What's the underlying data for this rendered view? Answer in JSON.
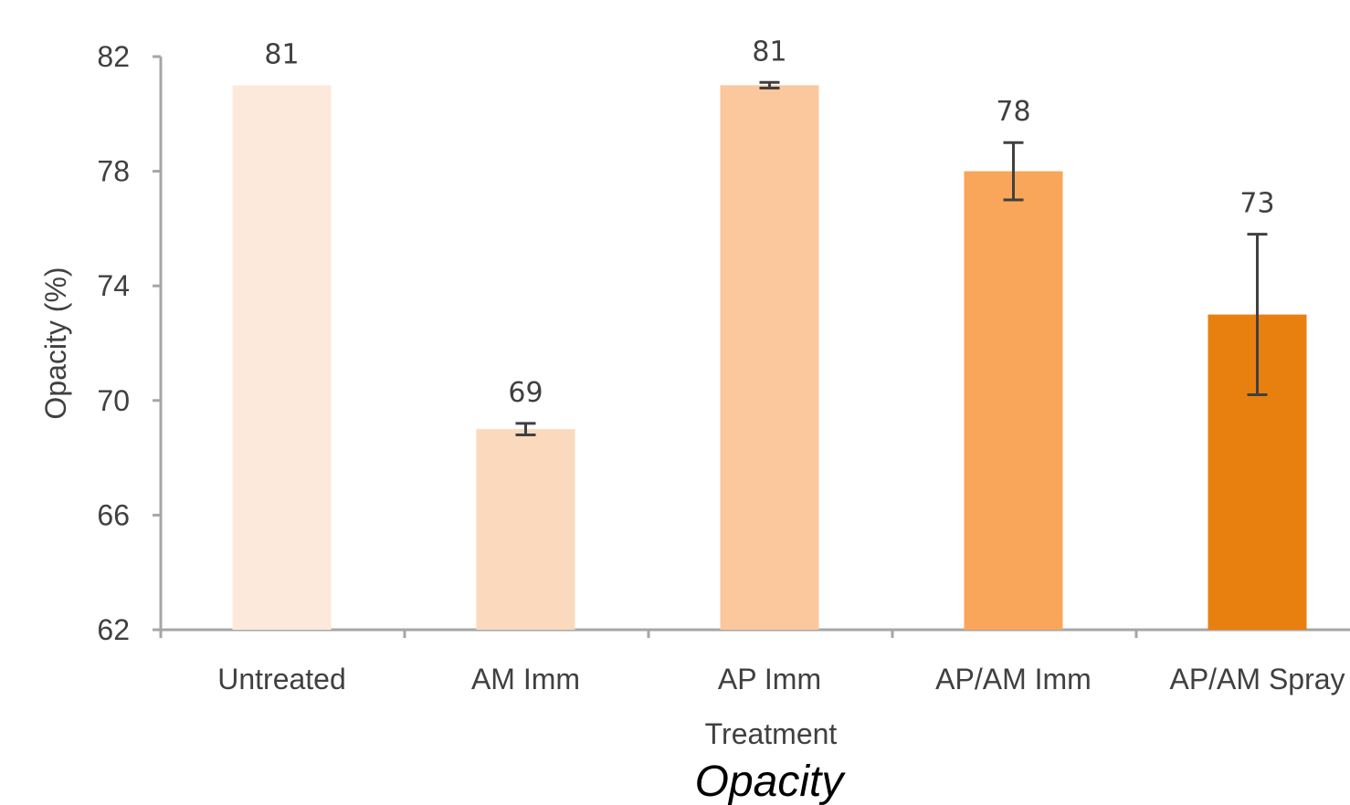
{
  "chart_data": {
    "type": "bar",
    "categories": [
      "Untreated",
      "AM Imm",
      "AP Imm",
      "AP/AM Imm",
      "AP/AM Spray"
    ],
    "values": [
      81,
      69,
      81,
      78,
      73
    ],
    "data_labels": [
      "81",
      "69",
      "81",
      "78",
      "73"
    ],
    "error_bars": [
      {
        "low": 81,
        "high": 81
      },
      {
        "low": 68.8,
        "high": 69.2
      },
      {
        "low": 80.9,
        "high": 81.1
      },
      {
        "low": 77.0,
        "high": 79.0
      },
      {
        "low": 70.2,
        "high": 75.8
      }
    ],
    "bar_colors": [
      "#fde9dc",
      "#fbd9bd",
      "#fbc79d",
      "#f9a65a",
      "#e8800f"
    ],
    "axis_color": "#a6a6a6",
    "error_bar_color": "#404040",
    "ylim": [
      62,
      82
    ],
    "yticks": [
      "62",
      "66",
      "70",
      "74",
      "78",
      "82"
    ],
    "ytick_values": [
      62,
      66,
      70,
      74,
      78,
      82
    ],
    "ylabel": "Opacity (%)",
    "xlabel": "Treatment",
    "caption": "Opacity",
    "grid": false,
    "legend": "none"
  }
}
